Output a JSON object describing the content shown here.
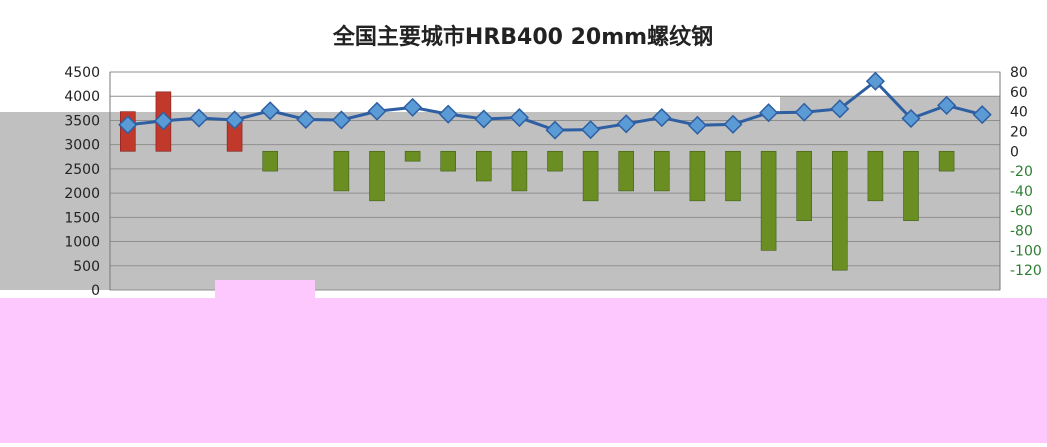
{
  "chart_data": {
    "type": "bar",
    "title": "全国主要城市HRB400 20mm螺纹钢",
    "y_left": {
      "ticks": [
        0,
        500,
        1000,
        1500,
        2000,
        2500,
        3000,
        3500,
        4000,
        4500
      ],
      "ylim": [
        0,
        4500
      ]
    },
    "y_right": {
      "ticks": [
        80,
        60,
        40,
        20,
        0,
        -20,
        -40,
        -60,
        -80,
        -100,
        -120
      ],
      "ylim": [
        -140,
        80
      ]
    },
    "bar_series": {
      "values": [
        40,
        60,
        0,
        30,
        -20,
        0,
        -40,
        -50,
        -10,
        -20,
        -30,
        -40,
        -20,
        -50,
        -40,
        -40,
        -50,
        -50,
        -100,
        -70,
        -120,
        -50,
        -70,
        -20,
        0
      ],
      "positive_color": "#c0392b",
      "negative_color": "#6b8e23"
    },
    "line_series": {
      "values": [
        3410,
        3490,
        3550,
        3510,
        3700,
        3520,
        3510,
        3690,
        3770,
        3630,
        3530,
        3560,
        3300,
        3310,
        3430,
        3560,
        3400,
        3420,
        3660,
        3670,
        3740,
        4310,
        3540,
        3810,
        3620
      ],
      "color": "#2e5fa3",
      "marker_color": "#5b9bd5"
    },
    "grid": true,
    "colors": {
      "plot_bg": "#c0c0c0",
      "overlay": "#fdc8fd"
    }
  }
}
